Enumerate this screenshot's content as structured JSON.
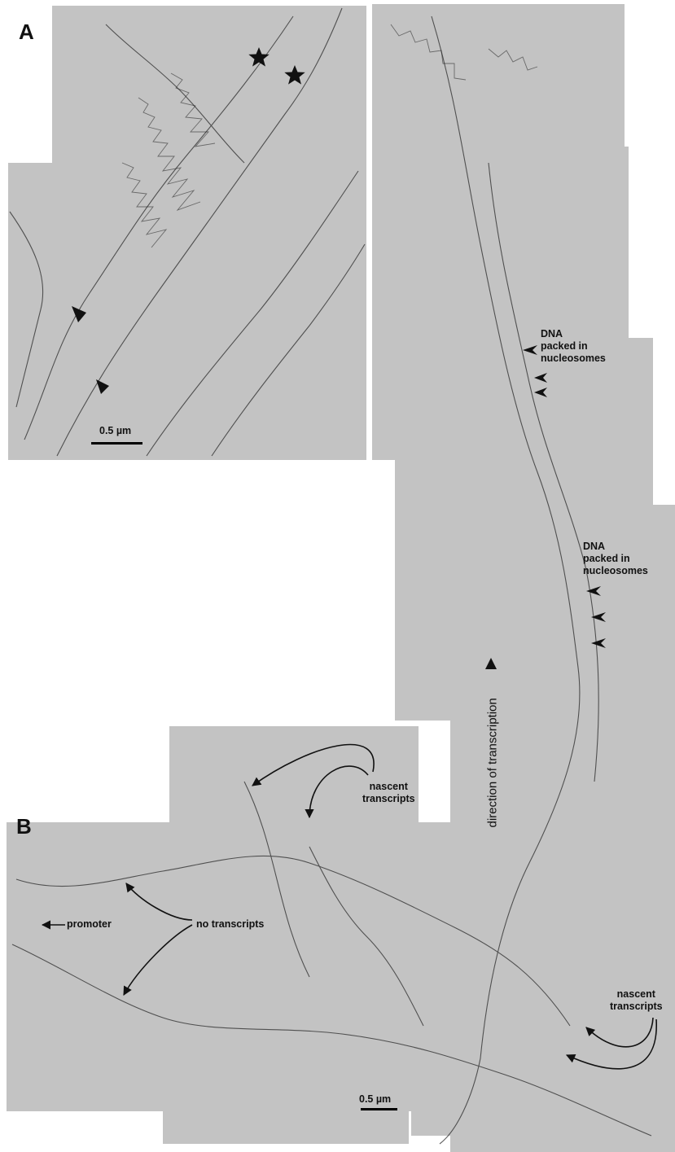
{
  "panel_a": {
    "letter": "A",
    "scale_label": "0.5 µm",
    "dna_label_1": [
      "DNA",
      "packed in",
      "nucleosomes"
    ],
    "dna_label_2": [
      "DNA",
      "packed in",
      "nucleosomes"
    ]
  },
  "panel_b": {
    "letter": "B",
    "scale_label": "0.5 µm",
    "nascent_label_top": [
      "nascent",
      "transcripts"
    ],
    "nascent_label_bottom": [
      "nascent",
      "transcripts"
    ],
    "no_transcripts": "no transcripts",
    "promoter": "promoter"
  },
  "direction_label": "direction of transcription",
  "colors": {
    "background_tile": "#c3c3c3",
    "ink": "#111111"
  }
}
